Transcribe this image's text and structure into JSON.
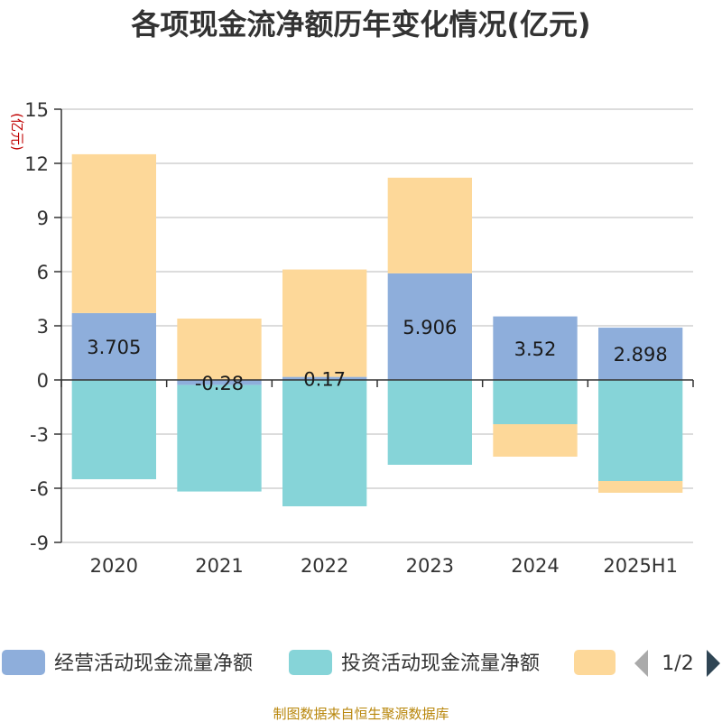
{
  "chart_data": {
    "type": "bar",
    "stacked": true,
    "title": "各项现金流净额历年变化情况(亿元)",
    "ylabel": "(亿元)",
    "xlabel": "",
    "categories": [
      "2020",
      "2021",
      "2022",
      "2023",
      "2024",
      "2025H1"
    ],
    "ylim": [
      -9,
      15
    ],
    "yticks": [
      15,
      12,
      9,
      6,
      3,
      0,
      -3,
      -6,
      -9
    ],
    "grid": true,
    "series": [
      {
        "name": "经营活动现金流量净额",
        "color": "#8eaedb",
        "values": [
          3.705,
          -0.28,
          0.17,
          5.906,
          3.52,
          2.898
        ],
        "labels": [
          "3.705",
          "-0.28",
          "0.17",
          "5.906",
          "3.52",
          "2.898"
        ]
      },
      {
        "name": "投资活动现金流量净额",
        "color": "#86d4d8",
        "values": [
          -5.5,
          -5.9,
          -7.0,
          -4.7,
          -2.45,
          -5.6
        ],
        "labels": [
          "",
          "",
          "",
          "",
          "",
          ""
        ]
      },
      {
        "name": "",
        "color": "#fdd899",
        "values": [
          8.8,
          3.4,
          5.95,
          5.3,
          -1.8,
          -0.65
        ],
        "labels": [
          "",
          "",
          "",
          "",
          "",
          ""
        ]
      }
    ],
    "legend": {
      "position": "bottom",
      "page_indicator": "1/2"
    }
  },
  "source_note": "制图数据来自恒生聚源数据库"
}
